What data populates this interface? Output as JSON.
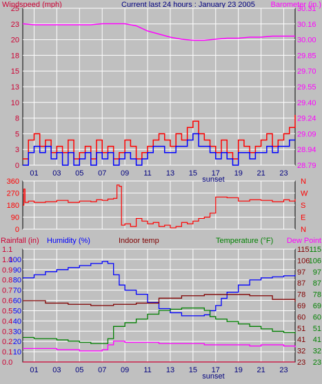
{
  "colors": {
    "background": "#c0c0c0",
    "plot_bg": "#c0c0c0",
    "grid": "#ffffff",
    "dark_text": "#00007f",
    "windspeed_axis": "#cc0033",
    "barometer": "#ff00ff",
    "gust": "#ff0000",
    "average_wind": "#0000ff",
    "direction": "#ff0000",
    "rainfall": "#cc0033",
    "humidity": "#0000ff",
    "indoor_temp": "#800000",
    "temperature": "#008000",
    "dew_point": "#ff00ff"
  },
  "header": {
    "title": "Current last 24 hours : January 23 2005"
  },
  "x_axis": {
    "hour_labels": [
      "01",
      "03",
      "05",
      "07",
      "09",
      "11",
      "13",
      "15",
      "17",
      "19",
      "21",
      "23"
    ],
    "sunset_label": "sunset",
    "sunset_hour": 16.8,
    "range_hours": [
      0,
      24
    ]
  },
  "chart_data": [
    {
      "type": "line",
      "panel": "wind",
      "left_axis_label": "Windspeed (mph)",
      "right_axis_label": "Barometer (in.)",
      "left_ticks": [
        "0",
        "3",
        "5",
        "8",
        "10",
        "13",
        "15",
        "18",
        "20",
        "23",
        "25"
      ],
      "right_ticks": [
        "28.79",
        "28.94",
        "29.09",
        "29.24",
        "29.40",
        "29.55",
        "29.70",
        "29.85",
        "30.00",
        "30.16",
        "30.31"
      ],
      "ylim": [
        0,
        25
      ],
      "barometer_lim": [
        28.79,
        30.31
      ],
      "series": [
        {
          "name": "Barometer (in.)",
          "axis": "right",
          "x": [
            0,
            1,
            2,
            3,
            4,
            5,
            6,
            7,
            8,
            9,
            10,
            11,
            12,
            13,
            14,
            15,
            16,
            17,
            18,
            19,
            20,
            21,
            22,
            23,
            24
          ],
          "values": [
            30.16,
            30.15,
            30.15,
            30.15,
            30.15,
            30.15,
            30.15,
            30.16,
            30.16,
            30.16,
            30.14,
            30.09,
            30.06,
            30.03,
            30.01,
            30.0,
            30.0,
            30.01,
            30.02,
            30.02,
            30.03,
            30.03,
            30.04,
            30.04,
            30.04
          ]
        },
        {
          "axis": "left",
          "x": [
            0,
            0.5,
            1,
            1.5,
            2,
            2.5,
            3,
            3.5,
            4,
            4.5,
            5,
            5.5,
            6,
            6.5,
            7,
            7.5,
            8,
            8.5,
            9,
            9.5,
            10,
            10.5,
            11,
            11.5,
            12,
            12.5,
            13,
            13.5,
            14,
            14.5,
            15,
            15.5,
            16,
            16.5,
            17,
            17.5,
            18,
            18.5,
            19,
            19.5,
            20,
            20.5,
            21,
            21.5,
            22,
            22.5,
            23,
            23.5,
            24
          ],
          "values": [
            1,
            4,
            5,
            3,
            4,
            2,
            3,
            2,
            4,
            1,
            2,
            3,
            1,
            4,
            2,
            3,
            1,
            2,
            4,
            3,
            1,
            2,
            3,
            4,
            5,
            4,
            3,
            5,
            4,
            6,
            7,
            5,
            4,
            3,
            2,
            4,
            2,
            1,
            4,
            3,
            2,
            3,
            4,
            5,
            3,
            4,
            5,
            6,
            8
          ]
        },
        {
          "axis": "left",
          "x": [
            0,
            0.5,
            1,
            1.5,
            2,
            2.5,
            3,
            3.5,
            4,
            4.5,
            5,
            5.5,
            6,
            6.5,
            7,
            7.5,
            8,
            8.5,
            9,
            9.5,
            10,
            10.5,
            11,
            11.5,
            12,
            12.5,
            13,
            13.5,
            14,
            14.5,
            15,
            15.5,
            16,
            16.5,
            17,
            17.5,
            18,
            18.5,
            19,
            19.5,
            20,
            20.5,
            21,
            21.5,
            22,
            22.5,
            23,
            23.5,
            24
          ],
          "values": [
            0,
            2,
            3,
            2,
            3,
            1,
            2,
            0,
            2,
            0,
            1,
            2,
            0,
            2,
            1,
            2,
            0,
            1,
            2,
            1,
            0,
            1,
            2,
            3,
            3,
            2,
            2,
            3,
            3,
            4,
            5,
            3,
            3,
            2,
            1,
            2,
            1,
            0,
            2,
            2,
            1,
            2,
            2,
            3,
            2,
            3,
            3,
            4,
            4
          ]
        }
      ]
    },
    {
      "type": "line",
      "panel": "direction",
      "left_ticks": [
        "0",
        "90",
        "180",
        "270",
        "360"
      ],
      "right_ticks": [
        "N",
        "E",
        "S",
        "W",
        "N"
      ],
      "ylim": [
        0,
        360
      ],
      "series": [
        {
          "axis": "left",
          "x": [
            0,
            0.1,
            0.2,
            0.5,
            1,
            2,
            3,
            4,
            5,
            6,
            6.5,
            7,
            7.5,
            8,
            8.3,
            8.5,
            8.7,
            9,
            9.5,
            10,
            10.5,
            11,
            11.5,
            12,
            12.5,
            13,
            13.5,
            14,
            14.5,
            15,
            15.5,
            16,
            16.5,
            17,
            18,
            19,
            20,
            21,
            22,
            23,
            23.5,
            24
          ],
          "values": [
            180,
            300,
            200,
            210,
            200,
            205,
            215,
            200,
            210,
            205,
            220,
            215,
            225,
            230,
            330,
            320,
            30,
            40,
            20,
            80,
            60,
            40,
            50,
            20,
            30,
            10,
            20,
            50,
            40,
            60,
            80,
            90,
            120,
            240,
            235,
            210,
            220,
            215,
            205,
            220,
            210,
            225
          ]
        }
      ]
    },
    {
      "type": "line",
      "panel": "climate",
      "labels": {
        "rainfall": "Rainfall (in)",
        "humidity": "Humidity (%)",
        "indoor_temp": "Indoor temp",
        "temperature": "Temperature (°F)",
        "dew_point": "Dew Point"
      },
      "rainfall_ticks": [
        "0.0",
        "0.1",
        "0.2",
        "0.3",
        "0.4",
        "0.5",
        "0.6",
        "0.7",
        "0.8",
        "0.9",
        "1.0",
        "1.1"
      ],
      "humidity_ticks": [
        "10",
        "20",
        "30",
        "40",
        "50",
        "60",
        "70",
        "80",
        "90",
        "100"
      ],
      "indoor_ticks": [
        "23",
        "32",
        "41",
        "51",
        "60",
        "69",
        "78",
        "87",
        "97",
        "106",
        "115"
      ],
      "temp_ticks": [
        "23",
        "32",
        "41",
        "51",
        "60",
        "69",
        "78",
        "87",
        "97",
        "106",
        "115"
      ],
      "humidity_lim": [
        0,
        100
      ],
      "temp_lim": [
        23,
        115
      ],
      "series": [
        {
          "name": "Humidity (%)",
          "axis": "humidity",
          "x": [
            0,
            1,
            2,
            3,
            4,
            5,
            6,
            7,
            7.5,
            8,
            8.5,
            9,
            10,
            11,
            12,
            13,
            14,
            15,
            16,
            16.5,
            17,
            17.5,
            18,
            19,
            20,
            21,
            22,
            23,
            24
          ],
          "values": [
            72,
            75,
            78,
            80,
            82,
            84,
            86,
            88,
            86,
            75,
            65,
            60,
            56,
            48,
            42,
            38,
            35,
            35,
            36,
            40,
            45,
            52,
            58,
            65,
            70,
            72,
            73,
            74,
            75
          ]
        },
        {
          "name": "Indoor temp",
          "axis": "temp",
          "x": [
            0,
            2,
            4,
            6,
            7,
            8,
            10,
            12,
            14,
            16,
            18,
            20,
            22,
            24
          ],
          "values": [
            73,
            71,
            70,
            69,
            69,
            70,
            71,
            75,
            77,
            78,
            78,
            77,
            74,
            72
          ]
        },
        {
          "name": "Temperature (°F)",
          "axis": "temp",
          "x": [
            0,
            1,
            2,
            3,
            4,
            5,
            6,
            7,
            7.5,
            8,
            9,
            10,
            11,
            12,
            13,
            14,
            15,
            16,
            16.5,
            17,
            18,
            19,
            20,
            21,
            22,
            23,
            24
          ],
          "values": [
            43,
            42,
            42,
            41,
            40,
            39,
            38,
            38,
            42,
            52,
            55,
            58,
            62,
            65,
            66,
            67,
            67,
            65,
            60,
            58,
            56,
            54,
            52,
            50,
            48,
            47,
            46
          ]
        },
        {
          "name": "Dew Point",
          "axis": "temp",
          "x": [
            0,
            1,
            2,
            3,
            4,
            5,
            6,
            7,
            7.5,
            8,
            9,
            10,
            11,
            12,
            13,
            14,
            15,
            16,
            17,
            18,
            19,
            20,
            21,
            22,
            23,
            24
          ],
          "values": [
            34,
            34,
            34,
            33,
            33,
            32,
            32,
            33,
            37,
            40,
            39,
            39,
            39,
            38,
            38,
            38,
            38,
            37,
            37,
            37,
            37,
            36,
            37,
            37,
            36,
            35
          ]
        },
        {
          "name": "Rainfall (in)",
          "axis": "rainfall",
          "x": [
            0,
            24
          ],
          "values": [
            0.0,
            0.0
          ]
        }
      ]
    }
  ]
}
